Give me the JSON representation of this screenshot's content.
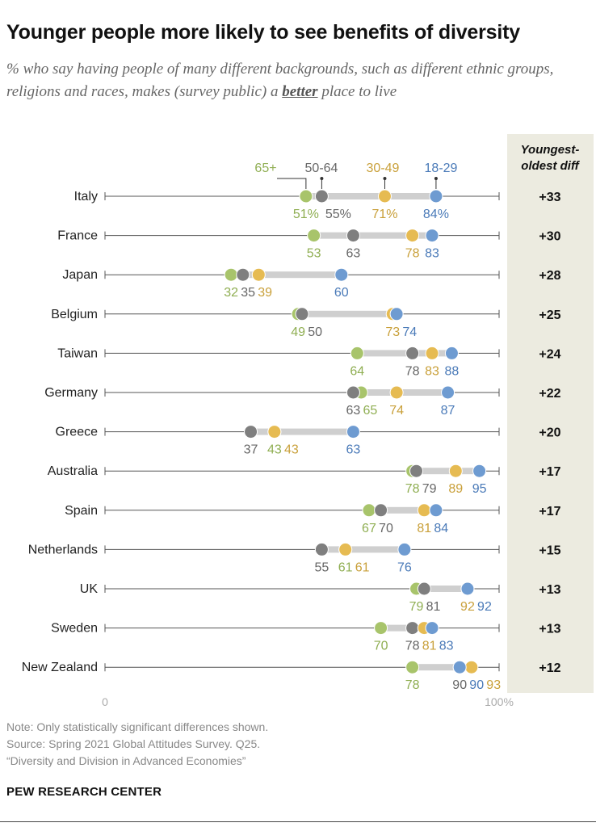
{
  "title": "Younger people more likely to see benefits of diversity",
  "subtitle_pre": "% who say having people of many different backgrounds, such as different ethnic groups, religions and races, makes (survey public) a ",
  "subtitle_em": "better",
  "subtitle_post": " place to live",
  "diff_header": [
    "Youngest-",
    "oldest diff"
  ],
  "axis": {
    "min_label": "0",
    "max_label": "100%"
  },
  "legend": [
    {
      "name": "65+",
      "color": "#a8c46b",
      "text_color": "#8fae52"
    },
    {
      "name": "50-64",
      "color": "#7f7f7f",
      "text_color": "#666666"
    },
    {
      "name": "30-49",
      "color": "#e6bb52",
      "text_color": "#c9a03a"
    },
    {
      "name": "18-29",
      "color": "#6e9bd1",
      "text_color": "#4a7ab8"
    }
  ],
  "chart_data": {
    "type": "dot",
    "title": "Younger people more likely to see benefits of diversity",
    "xlim": [
      0,
      100
    ],
    "series_names": [
      "65+",
      "50-64",
      "30-49",
      "18-29"
    ],
    "rows": [
      {
        "country": "Italy",
        "values": [
          51,
          55,
          71,
          84
        ],
        "labels": [
          "51%",
          "55%",
          "71%",
          "84%"
        ],
        "diff": "+33"
      },
      {
        "country": "France",
        "values": [
          53,
          63,
          78,
          83
        ],
        "labels": [
          "53",
          "63",
          "78",
          "83"
        ],
        "diff": "+30"
      },
      {
        "country": "Japan",
        "values": [
          32,
          35,
          39,
          60
        ],
        "labels": [
          "32",
          "35",
          "39",
          "60"
        ],
        "diff": "+28"
      },
      {
        "country": "Belgium",
        "values": [
          49,
          50,
          73,
          74
        ],
        "labels": [
          "49",
          "50",
          "73",
          "74"
        ],
        "diff": "+25"
      },
      {
        "country": "Taiwan",
        "values": [
          64,
          78,
          83,
          88
        ],
        "labels": [
          "64",
          "78",
          "83",
          "88"
        ],
        "diff": "+24"
      },
      {
        "country": "Germany",
        "values": [
          65,
          63,
          74,
          87
        ],
        "labels": [
          "65",
          "63",
          "74",
          "87"
        ],
        "diff": "+22"
      },
      {
        "country": "Greece",
        "values": [
          43,
          37,
          43,
          63
        ],
        "labels": [
          "43",
          "37",
          "43",
          "63"
        ],
        "diff": "+20"
      },
      {
        "country": "Australia",
        "values": [
          78,
          79,
          89,
          95
        ],
        "labels": [
          "78",
          "79",
          "89",
          "95"
        ],
        "diff": "+17"
      },
      {
        "country": "Spain",
        "values": [
          67,
          70,
          81,
          84
        ],
        "labels": [
          "67",
          "70",
          "81",
          "84"
        ],
        "diff": "+17"
      },
      {
        "country": "Netherlands",
        "values": [
          61,
          55,
          61,
          76
        ],
        "labels": [
          "61",
          "55",
          "61",
          "76"
        ],
        "diff": "+15"
      },
      {
        "country": "UK",
        "values": [
          79,
          81,
          92,
          92
        ],
        "labels": [
          "79",
          "81",
          "92",
          "92"
        ],
        "diff": "+13"
      },
      {
        "country": "Sweden",
        "values": [
          70,
          78,
          81,
          83
        ],
        "labels": [
          "70",
          "78",
          "81",
          "83"
        ],
        "diff": "+13"
      },
      {
        "country": "New Zealand",
        "values": [
          78,
          90,
          93,
          90
        ],
        "labels": [
          "78",
          "90",
          "93",
          "90"
        ],
        "diff": "+12"
      }
    ]
  },
  "footer": {
    "note": "Note: Only statistically significant differences shown.",
    "source": "Source: Spring 2021 Global Attitudes Survey. Q25.",
    "report": "“Diversity and Division in Advanced Economies”"
  },
  "brand": "PEW RESEARCH CENTER"
}
